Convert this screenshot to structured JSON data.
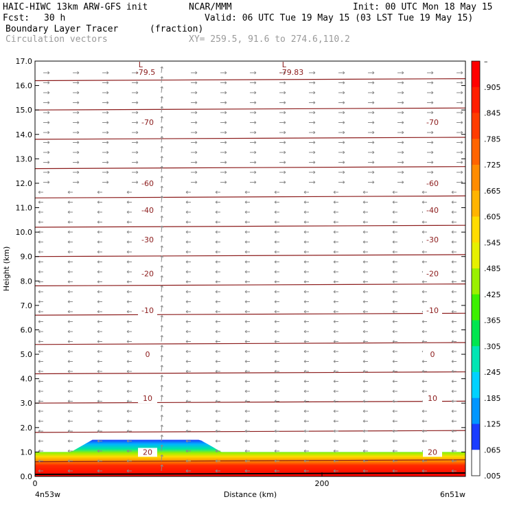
{
  "header": {
    "model": "HAIC-HIWC 13km ARW-GFS init",
    "org": "NCAR/MMM",
    "init": "Init: 00 UTC Mon 18 May 15",
    "fcst_label": "Fcst:",
    "fcst_value": "30 h",
    "valid": "Valid: 06 UTC Tue 19 May 15 (03 LST Tue 19 May 15)",
    "field1_name": "Boundary Layer Tracer",
    "field1_unit": "(fraction)",
    "field2_name": "Circulation vectors",
    "xy_range": "XY= 259.5, 91.6 to 274.6,110.2"
  },
  "chart_data": {
    "type": "cross-section",
    "ylabel": "Height (km)",
    "xlabel": "Distance (km)",
    "ylim": [
      0,
      17
    ],
    "xlim": [
      0,
      300
    ],
    "y_ticks": [
      "0.0",
      "1.0",
      "2.0",
      "3.0",
      "4.0",
      "5.0",
      "6.0",
      "7.0",
      "8.0",
      "9.0",
      "10.0",
      "11.0",
      "12.0",
      "13.0",
      "14.0",
      "15.0",
      "16.0",
      "17.0"
    ],
    "x_ticks": [
      {
        "value": 0,
        "label": "0"
      },
      {
        "value": 200,
        "label": "200"
      }
    ],
    "x_left_label": "4n53w",
    "x_right_label": "6n51w",
    "colorbar_labels": [
      "–",
      ".905",
      ".845",
      ".785",
      ".725",
      ".665",
      ".605",
      ".545",
      ".485",
      ".425",
      ".365",
      ".305",
      ".245",
      ".185",
      ".125",
      ".065",
      ".005"
    ],
    "colorbar_colors": [
      "#ffffff",
      "#1a3cff",
      "#0096ff",
      "#00d2ff",
      "#00e6b4",
      "#00e650",
      "#3cf000",
      "#9af000",
      "#e6f000",
      "#ffdc00",
      "#ffb400",
      "#ff8c00",
      "#ff6400",
      "#ff3c00",
      "#ff1e00",
      "#ff0000"
    ],
    "isotherms": [
      {
        "label": "-70",
        "km": 14.5
      },
      {
        "label": "-60",
        "km": 12.0
      },
      {
        "label": "-40",
        "km": 10.9
      },
      {
        "label": "-30",
        "km": 9.7
      },
      {
        "label": "-20",
        "km": 8.3
      },
      {
        "label": "-10",
        "km": 6.8
      },
      {
        "label": "0",
        "km": 5.0
      },
      {
        "label": "10",
        "km": 3.2
      },
      {
        "label": "20",
        "km": 1.0
      }
    ],
    "lows": [
      {
        "marker": "L",
        "label": "-79.5",
        "x_km": 75
      },
      {
        "marker": "L",
        "label": "-79.83",
        "x_km": 175
      }
    ],
    "tracer_layer": {
      "top_km": 1.0,
      "bump_top_km": 1.5,
      "bump_x_km": [
        40,
        115
      ]
    }
  }
}
